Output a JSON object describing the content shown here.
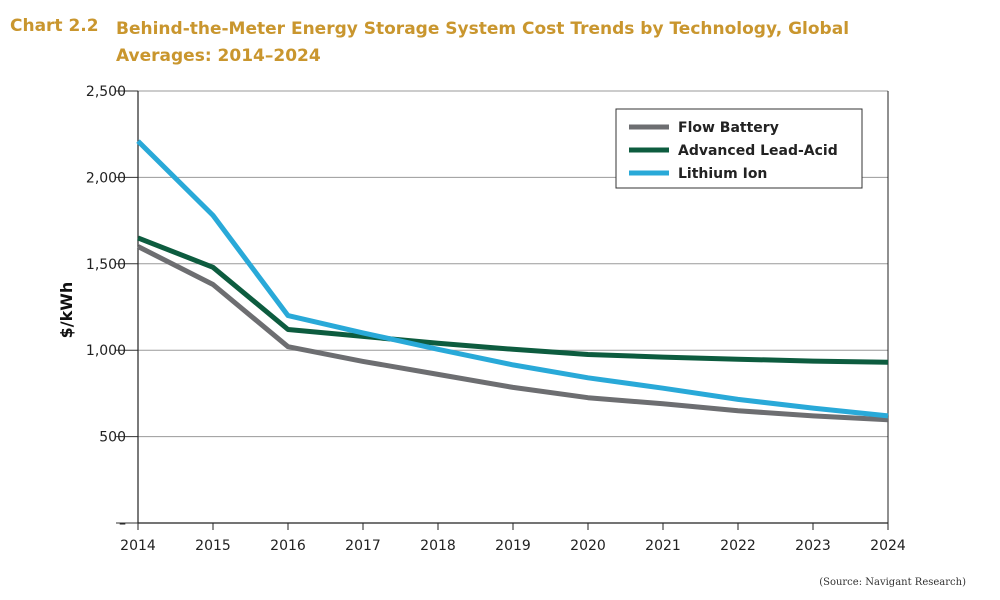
{
  "header": {
    "chart_label": "Chart 2.2",
    "title": "Behind-the-Meter Energy Storage System Cost Trends by Technology, Global Averages: 2014–2024"
  },
  "source": "(Source: Navigant Research)",
  "colors": {
    "title": "#c9962e",
    "flow_battery": "#6d6e71",
    "advanced_lead_acid": "#0d5c3f",
    "lithium_ion": "#29a9d8",
    "grid": "#9a9a9a"
  },
  "chart_data": {
    "type": "line",
    "title": "Behind-the-Meter Energy Storage System Cost Trends by Technology, Global Averages: 2014–2024",
    "ylabel": "$/kWh",
    "xlabel": "",
    "x": [
      "2014",
      "2015",
      "2016",
      "2017",
      "2018",
      "2019",
      "2020",
      "2021",
      "2022",
      "2023",
      "2024"
    ],
    "ylim": [
      0,
      2500
    ],
    "yticks": [
      0,
      500,
      1000,
      1500,
      2000,
      2500
    ],
    "ytick_labels": [
      "–",
      "500",
      "1,000",
      "1,500",
      "2,000",
      "2,500"
    ],
    "grid": true,
    "legend_position": "top-right",
    "series": [
      {
        "name": "Flow Battery",
        "color": "#6d6e71",
        "values": [
          1600,
          1380,
          1020,
          935,
          860,
          785,
          725,
          690,
          650,
          620,
          597
        ]
      },
      {
        "name": "Advanced Lead-Acid",
        "color": "#0d5c3f",
        "values": [
          1650,
          1480,
          1120,
          1080,
          1040,
          1005,
          975,
          960,
          948,
          937,
          930
        ]
      },
      {
        "name": "Lithium Ion",
        "color": "#29a9d8",
        "values": [
          2210,
          1780,
          1200,
          1100,
          1005,
          915,
          840,
          780,
          715,
          665,
          620
        ]
      }
    ]
  }
}
